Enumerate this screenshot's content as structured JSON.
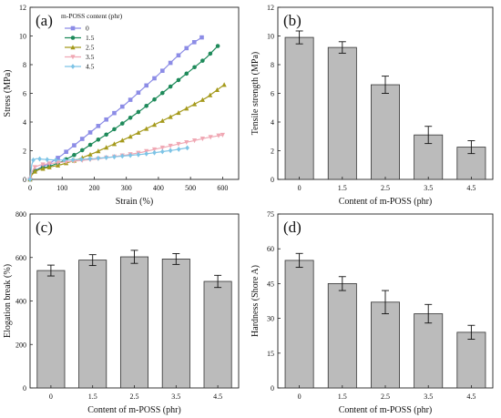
{
  "chart_data": [
    {
      "type": "line",
      "panel_label": "(a)",
      "xlabel": "Strain (%)",
      "ylabel": "Stress (MPa)",
      "xlim": [
        0,
        650
      ],
      "ylim": [
        0,
        12
      ],
      "xticks": [
        "0",
        "100",
        "200",
        "300",
        "400",
        "500",
        "600"
      ],
      "yticks": [
        "0",
        "2",
        "4",
        "6",
        "8",
        "10",
        "12"
      ],
      "legend_title": "m-POSS content (phr)",
      "legend_position": "top-left",
      "series": [
        {
          "name": "0",
          "color": "#8c8ce6",
          "marker": "square",
          "points": [
            [
              0,
              0
            ],
            [
              5,
              0.35
            ],
            [
              15,
              0.6
            ],
            [
              30,
              0.8
            ],
            [
              60,
              1.1
            ],
            [
              100,
              1.7
            ],
            [
              150,
              2.6
            ],
            [
              200,
              3.5
            ],
            [
              250,
              4.4
            ],
            [
              300,
              5.3
            ],
            [
              350,
              6.3
            ],
            [
              400,
              7.3
            ],
            [
              450,
              8.4
            ],
            [
              500,
              9.4
            ],
            [
              535,
              9.9
            ]
          ]
        },
        {
          "name": "1.5",
          "color": "#1e8a5a",
          "marker": "circle",
          "points": [
            [
              0,
              0
            ],
            [
              5,
              0.35
            ],
            [
              15,
              0.6
            ],
            [
              30,
              0.75
            ],
            [
              60,
              0.9
            ],
            [
              100,
              1.25
            ],
            [
              150,
              1.85
            ],
            [
              200,
              2.6
            ],
            [
              250,
              3.3
            ],
            [
              300,
              4.1
            ],
            [
              350,
              4.9
            ],
            [
              400,
              5.8
            ],
            [
              450,
              6.7
            ],
            [
              500,
              7.6
            ],
            [
              550,
              8.5
            ],
            [
              585,
              9.3
            ]
          ]
        },
        {
          "name": "2.5",
          "color": "#a59a1c",
          "marker": "triangle-up",
          "points": [
            [
              0,
              0
            ],
            [
              5,
              0.3
            ],
            [
              15,
              0.55
            ],
            [
              30,
              0.7
            ],
            [
              60,
              0.85
            ],
            [
              100,
              1.05
            ],
            [
              150,
              1.4
            ],
            [
              200,
              1.85
            ],
            [
              250,
              2.35
            ],
            [
              300,
              2.85
            ],
            [
              350,
              3.4
            ],
            [
              400,
              3.95
            ],
            [
              450,
              4.5
            ],
            [
              500,
              5.1
            ],
            [
              550,
              5.7
            ],
            [
              605,
              6.6
            ]
          ]
        },
        {
          "name": "3.5",
          "color": "#f0a8b4",
          "marker": "triangle-down",
          "points": [
            [
              0,
              0
            ],
            [
              5,
              0.5
            ],
            [
              15,
              0.85
            ],
            [
              30,
              1.0
            ],
            [
              60,
              1.1
            ],
            [
              100,
              1.2
            ],
            [
              150,
              1.3
            ],
            [
              200,
              1.4
            ],
            [
              250,
              1.55
            ],
            [
              300,
              1.7
            ],
            [
              350,
              1.9
            ],
            [
              400,
              2.15
            ],
            [
              450,
              2.4
            ],
            [
              500,
              2.65
            ],
            [
              550,
              2.9
            ],
            [
              600,
              3.1
            ]
          ]
        },
        {
          "name": "4.5",
          "color": "#7ec4e6",
          "marker": "diamond",
          "points": [
            [
              0,
              0
            ],
            [
              5,
              1.0
            ],
            [
              10,
              1.35
            ],
            [
              20,
              1.45
            ],
            [
              40,
              1.4
            ],
            [
              80,
              1.35
            ],
            [
              120,
              1.35
            ],
            [
              160,
              1.4
            ],
            [
              200,
              1.45
            ],
            [
              250,
              1.55
            ],
            [
              300,
              1.65
            ],
            [
              350,
              1.75
            ],
            [
              400,
              1.9
            ],
            [
              450,
              2.05
            ],
            [
              490,
              2.2
            ]
          ]
        }
      ]
    },
    {
      "type": "bar",
      "panel_label": "(b)",
      "categories": [
        "0",
        "1.5",
        "2.5",
        "3.5",
        "4.5"
      ],
      "values": [
        9.9,
        9.2,
        6.6,
        3.1,
        2.25
      ],
      "errors": [
        0.45,
        0.4,
        0.6,
        0.6,
        0.45
      ],
      "xlabel": "Content of m-POSS (phr)",
      "ylabel": "Tensile strength (MPa)",
      "ylim": [
        0,
        12
      ],
      "yticks": [
        "0",
        "2",
        "4",
        "6",
        "8",
        "10",
        "12"
      ],
      "bar_color": "#bbbbbb"
    },
    {
      "type": "bar",
      "panel_label": "(c)",
      "categories": [
        "0",
        "1.5",
        "2.5",
        "3.5",
        "4.5"
      ],
      "values": [
        540,
        588,
        603,
        593,
        490
      ],
      "errors": [
        25,
        25,
        30,
        25,
        28
      ],
      "xlabel": "Content of m-POSS (phr)",
      "ylabel": "Elogation break (%)",
      "ylim": [
        0,
        800
      ],
      "yticks": [
        "0",
        "200",
        "400",
        "600",
        "800"
      ],
      "bar_color": "#bbbbbb"
    },
    {
      "type": "bar",
      "panel_label": "(d)",
      "categories": [
        "0",
        "1.5",
        "2.5",
        "3.5",
        "4.5"
      ],
      "values": [
        55,
        45,
        37,
        32,
        24
      ],
      "errors": [
        3,
        3,
        5,
        4,
        3
      ],
      "xlabel": "Content of m-POSS (phr)",
      "ylabel": "Hardness (Shore A)",
      "ylim": [
        0,
        75
      ],
      "yticks": [
        "0",
        "15",
        "30",
        "45",
        "60",
        "75"
      ],
      "bar_color": "#bbbbbb"
    }
  ]
}
